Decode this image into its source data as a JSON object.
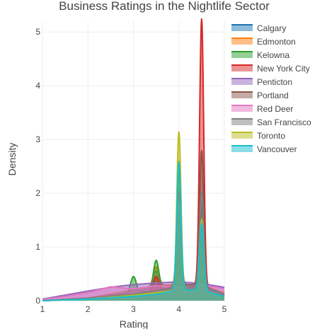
{
  "chart_data": {
    "type": "area",
    "title": "Business Ratings in the Nightlife Sector",
    "xlabel": "Rating",
    "ylabel": "Density",
    "xlim": [
      1,
      5
    ],
    "ylim": [
      0,
      5.2
    ],
    "x_ticks": [
      1,
      2,
      3,
      4,
      5
    ],
    "y_ticks": [
      0,
      1,
      2,
      3,
      4,
      5
    ],
    "grid": true,
    "legend_position": "top-right",
    "series": [
      {
        "name": "Calgary",
        "color": "#1f77b4",
        "baseline": [
          [
            1,
            0.0
          ],
          [
            2,
            0.05
          ],
          [
            3,
            0.18
          ],
          [
            3.5,
            0.25
          ],
          [
            4,
            0.3
          ],
          [
            4.5,
            0.28
          ],
          [
            5,
            0.15
          ]
        ],
        "peaks": [
          [
            3.5,
            0.3,
            0.07
          ],
          [
            4.0,
            1.35,
            0.045
          ],
          [
            4.5,
            1.25,
            0.045
          ]
        ]
      },
      {
        "name": "Edmonton",
        "color": "#ff7f0e",
        "baseline": [
          [
            1,
            0.0
          ],
          [
            2,
            0.05
          ],
          [
            3,
            0.2
          ],
          [
            3.5,
            0.28
          ],
          [
            4,
            0.3
          ],
          [
            4.5,
            0.28
          ],
          [
            5,
            0.15
          ]
        ],
        "peaks": [
          [
            3.5,
            0.35,
            0.06
          ],
          [
            4.0,
            2.05,
            0.045
          ],
          [
            4.5,
            1.3,
            0.045
          ]
        ]
      },
      {
        "name": "Kelowna",
        "color": "#2ca02c",
        "baseline": [
          [
            1,
            0.0
          ],
          [
            2,
            0.05
          ],
          [
            3,
            0.15
          ],
          [
            3.5,
            0.2
          ],
          [
            4,
            0.25
          ],
          [
            4.5,
            0.2
          ],
          [
            5,
            0.1
          ]
        ],
        "peaks": [
          [
            3.0,
            0.3,
            0.06
          ],
          [
            3.5,
            0.55,
            0.06
          ],
          [
            4.0,
            2.35,
            0.045
          ],
          [
            4.5,
            1.55,
            0.045
          ]
        ]
      },
      {
        "name": "New York City",
        "color": "#d62728",
        "baseline": [
          [
            1,
            0.0
          ],
          [
            2,
            0.03
          ],
          [
            3,
            0.1
          ],
          [
            3.5,
            0.15
          ],
          [
            4,
            0.3
          ],
          [
            4.5,
            0.3
          ],
          [
            5,
            0.1
          ]
        ],
        "peaks": [
          [
            3.5,
            0.3,
            0.06
          ],
          [
            4.0,
            1.75,
            0.045
          ],
          [
            4.5,
            4.95,
            0.045
          ]
        ]
      },
      {
        "name": "Penticton",
        "color": "#9467bd",
        "baseline": [
          [
            1,
            0.03
          ],
          [
            2,
            0.18
          ],
          [
            2.5,
            0.25
          ],
          [
            3,
            0.3
          ],
          [
            3.5,
            0.33
          ],
          [
            4,
            0.35
          ],
          [
            4.5,
            0.32
          ],
          [
            5,
            0.25
          ]
        ],
        "peaks": []
      },
      {
        "name": "Portland",
        "color": "#8c564b",
        "baseline": [
          [
            1,
            0.0
          ],
          [
            2,
            0.05
          ],
          [
            3,
            0.12
          ],
          [
            3.5,
            0.18
          ],
          [
            4,
            0.28
          ],
          [
            4.5,
            0.3
          ],
          [
            5,
            0.12
          ]
        ],
        "peaks": [
          [
            4.0,
            1.6,
            0.045
          ],
          [
            4.5,
            2.5,
            0.045
          ]
        ]
      },
      {
        "name": "Red Deer",
        "color": "#e377c2",
        "baseline": [
          [
            1,
            0.02
          ],
          [
            1.5,
            0.08
          ],
          [
            2,
            0.15
          ],
          [
            2.5,
            0.26
          ],
          [
            3,
            0.22
          ],
          [
            3.5,
            0.28
          ],
          [
            4,
            0.25
          ],
          [
            4.5,
            0.3
          ],
          [
            5,
            0.22
          ]
        ],
        "peaks": []
      },
      {
        "name": "San Francisco",
        "color": "#7f7f7f",
        "baseline": [
          [
            1,
            0.0
          ],
          [
            2,
            0.04
          ],
          [
            3,
            0.12
          ],
          [
            3.5,
            0.18
          ],
          [
            4,
            0.28
          ],
          [
            4.5,
            0.28
          ],
          [
            5,
            0.12
          ]
        ],
        "peaks": [
          [
            4.0,
            1.55,
            0.045
          ],
          [
            4.5,
            1.75,
            0.045
          ]
        ]
      },
      {
        "name": "Toronto",
        "color": "#bcbd22",
        "baseline": [
          [
            1,
            0.0
          ],
          [
            2,
            0.03
          ],
          [
            3,
            0.1
          ],
          [
            3.5,
            0.15
          ],
          [
            4,
            0.2
          ],
          [
            4.5,
            0.2
          ],
          [
            5,
            0.08
          ]
        ],
        "peaks": [
          [
            4.0,
            2.95,
            0.045
          ],
          [
            4.5,
            1.3,
            0.045
          ]
        ]
      },
      {
        "name": "Vancouver",
        "color": "#17becf",
        "baseline": [
          [
            1,
            0.0
          ],
          [
            2,
            0.03
          ],
          [
            3,
            0.08
          ],
          [
            3.5,
            0.12
          ],
          [
            4,
            0.2
          ],
          [
            4.5,
            0.2
          ],
          [
            5,
            0.08
          ]
        ],
        "peaks": [
          [
            4.0,
            2.38,
            0.045
          ],
          [
            4.5,
            1.22,
            0.045
          ]
        ]
      }
    ]
  }
}
